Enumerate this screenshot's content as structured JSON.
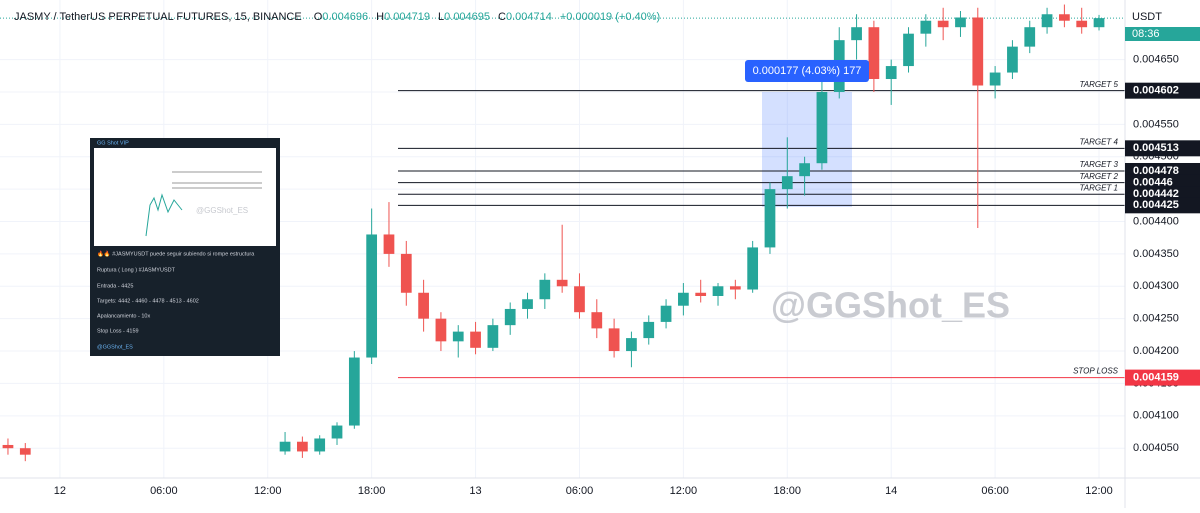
{
  "chart_data": {
    "type": "candlestick",
    "title": "JASMY / TetherUS PERPETUAL FUTURES, 15, BINANCE",
    "ohlc_legend": [
      {
        "label": "O",
        "value": 0.004696
      },
      {
        "label": "H",
        "value": 0.004719
      },
      {
        "label": "L",
        "value": 0.004695
      },
      {
        "label": "C",
        "value": 0.004714
      }
    ],
    "change": "+0.000019 (+0.40%)",
    "currency": "USDT",
    "countdown": "08:36",
    "last_price": 0.004714,
    "watermark": "@GGShot_ES",
    "measure_label": "0.000177 (4.03%) 177",
    "up_color": "#26a69a",
    "down_color": "#ef5350",
    "grid": true,
    "xlim": [
      -3.46,
      61.5
    ],
    "xticks": [
      {
        "value": 0,
        "label": "12"
      },
      {
        "value": 6,
        "label": "06:00"
      },
      {
        "value": 12,
        "label": "12:00"
      },
      {
        "value": 18,
        "label": "18:00"
      },
      {
        "value": 24,
        "label": "13"
      },
      {
        "value": 30,
        "label": "06:00"
      },
      {
        "value": 36,
        "label": "12:00"
      },
      {
        "value": 42,
        "label": "18:00"
      },
      {
        "value": 48,
        "label": "14"
      },
      {
        "value": 54,
        "label": "06:00"
      },
      {
        "value": 60,
        "label": "12:00"
      }
    ],
    "ylim": [
      0.004004,
      0.004742
    ],
    "yticks": [
      {
        "value": 0.00405,
        "label": "0.004050"
      },
      {
        "value": 0.0041,
        "label": "0.004100"
      },
      {
        "value": 0.00415,
        "label": "0.004150"
      },
      {
        "value": 0.0042,
        "label": "0.004200"
      },
      {
        "value": 0.00425,
        "label": "0.004250"
      },
      {
        "value": 0.0043,
        "label": "0.004300"
      },
      {
        "value": 0.00435,
        "label": "0.004350"
      },
      {
        "value": 0.0044,
        "label": "0.004400"
      },
      {
        "value": 0.00445,
        "label": "0.004450"
      },
      {
        "value": 0.0045,
        "label": "0.004500"
      },
      {
        "value": 0.00455,
        "label": "0.004550"
      },
      {
        "value": 0.0046,
        "label": "0.004600"
      },
      {
        "value": 0.00465,
        "label": "0.004650"
      }
    ],
    "levels": [
      {
        "label": "TARGET 5",
        "value": 0.004602,
        "color": "#131722"
      },
      {
        "label": "TARGET 4",
        "value": 0.004513,
        "color": "#131722"
      },
      {
        "label": "TARGET 3",
        "value": 0.004478,
        "color": "#131722"
      },
      {
        "label": "TARGET 2",
        "value": 0.00446,
        "color": "#131722"
      },
      {
        "label": "TARGET 1",
        "value": 0.004442,
        "color": "#131722"
      },
      {
        "value": 0.004425,
        "color": "#131722"
      },
      {
        "label": "STOP LOSS",
        "value": 0.004159,
        "color": "#f23645"
      }
    ],
    "candles": {
      "x": [
        -3,
        -2,
        13,
        14,
        15,
        16,
        17,
        18,
        19,
        20,
        21,
        22,
        23,
        24,
        25,
        26,
        27,
        28,
        29,
        30,
        31,
        32,
        33,
        34,
        35,
        36,
        37,
        38,
        39,
        40,
        41,
        42,
        43,
        44,
        45,
        46,
        47,
        48,
        49,
        50,
        51,
        52,
        53,
        54,
        55,
        56,
        57,
        58,
        59,
        60
      ],
      "open": [
        0.004055,
        0.00405,
        0.004045,
        0.00406,
        0.004045,
        0.004065,
        0.004085,
        0.00419,
        0.00438,
        0.00435,
        0.00429,
        0.00425,
        0.004215,
        0.00423,
        0.004205,
        0.00424,
        0.004265,
        0.00428,
        0.00431,
        0.0043,
        0.00426,
        0.004235,
        0.0042,
        0.00422,
        0.004245,
        0.00427,
        0.00429,
        0.004285,
        0.0043,
        0.004295,
        0.00436,
        0.00445,
        0.00447,
        0.00449,
        0.0046,
        0.00468,
        0.0047,
        0.00462,
        0.00464,
        0.00469,
        0.00471,
        0.0047,
        0.004715,
        0.00461,
        0.00463,
        0.00467,
        0.0047,
        0.00472,
        0.00471,
        0.0047
      ],
      "high": [
        0.004065,
        0.004058,
        0.004075,
        0.004068,
        0.00407,
        0.00409,
        0.0042,
        0.00442,
        0.00443,
        0.00437,
        0.00431,
        0.00426,
        0.00424,
        0.004245,
        0.00425,
        0.004275,
        0.00429,
        0.00432,
        0.004395,
        0.00432,
        0.00428,
        0.00425,
        0.00423,
        0.004255,
        0.00428,
        0.004305,
        0.00431,
        0.004305,
        0.00431,
        0.00437,
        0.00446,
        0.00453,
        0.0045,
        0.00462,
        0.0047,
        0.00472,
        0.00471,
        0.00465,
        0.0047,
        0.00472,
        0.00473,
        0.004725,
        0.00473,
        0.00464,
        0.00468,
        0.00471,
        0.00473,
        0.004735,
        0.00473,
        0.004719
      ],
      "low": [
        0.00404,
        0.00403,
        0.00404,
        0.004035,
        0.00404,
        0.004055,
        0.00408,
        0.00418,
        0.00433,
        0.00427,
        0.00423,
        0.0042,
        0.00419,
        0.004195,
        0.0042,
        0.004225,
        0.00425,
        0.004265,
        0.00429,
        0.00425,
        0.00422,
        0.00419,
        0.004175,
        0.00421,
        0.004235,
        0.004255,
        0.004275,
        0.00427,
        0.00428,
        0.00429,
        0.00435,
        0.00442,
        0.00444,
        0.00448,
        0.00459,
        0.00465,
        0.0046,
        0.00458,
        0.00463,
        0.00467,
        0.00468,
        0.004685,
        0.00439,
        0.00459,
        0.00462,
        0.00466,
        0.00469,
        0.0047,
        0.00469,
        0.004695
      ],
      "close": [
        0.00405,
        0.00404,
        0.00406,
        0.004045,
        0.004065,
        0.004085,
        0.00419,
        0.00438,
        0.00435,
        0.00429,
        0.00425,
        0.004215,
        0.00423,
        0.004205,
        0.00424,
        0.004265,
        0.00428,
        0.00431,
        0.0043,
        0.00426,
        0.004235,
        0.0042,
        0.00422,
        0.004245,
        0.00427,
        0.00429,
        0.004285,
        0.0043,
        0.004295,
        0.00436,
        0.00445,
        0.00447,
        0.00449,
        0.0046,
        0.00468,
        0.0047,
        0.00462,
        0.00464,
        0.00469,
        0.00471,
        0.0047,
        0.004715,
        0.00461,
        0.00463,
        0.00467,
        0.0047,
        0.00472,
        0.00471,
        0.0047,
        0.004714
      ]
    }
  },
  "inset": {
    "channel": "GG Shot VIP",
    "headline": "🔥🔥 #JASMYUSDT puede seguir subiendo si rompe estructura",
    "lines": [
      "Ruptura ( Long ) #JASMYUSDT",
      "Entrada - 4425",
      "Targets: 4442 - 4460 - 4478 - 4513 - 4602",
      "Apalancamiento - 10x",
      "Stop Loss - 4159",
      "@GGShot_ES"
    ],
    "watermark": "@GGShot_ES"
  }
}
